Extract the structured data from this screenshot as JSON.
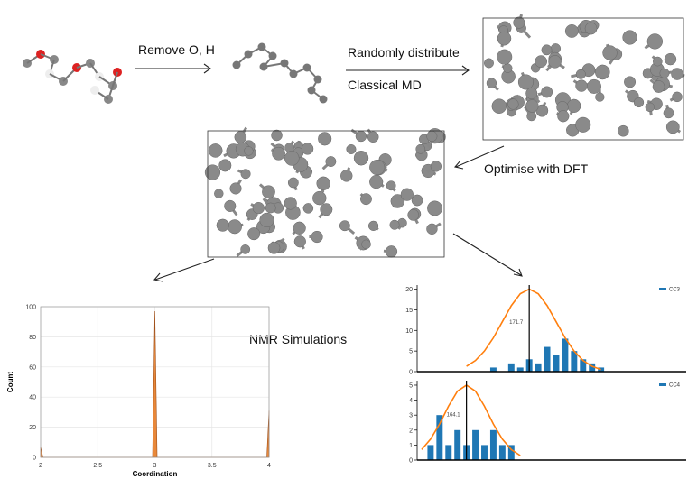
{
  "labels": {
    "remove": "Remove O, H",
    "distribute": "Randomly distribute",
    "md": "Classical MD",
    "dft": "Optimise with DFT",
    "nmr": "NMR Simulations"
  },
  "chart_data": [
    {
      "type": "area",
      "x": [
        2,
        2.02,
        2.98,
        3,
        3.02,
        3.98,
        4
      ],
      "values": [
        7,
        0,
        0,
        97,
        0,
        0,
        31
      ],
      "color": "#e8883a",
      "xlim": [
        2,
        4
      ],
      "ylim": [
        0,
        100
      ],
      "xticks": [
        2,
        2.5,
        3,
        3.5,
        4
      ],
      "yticks": [
        0,
        20,
        40,
        60,
        80,
        100
      ],
      "xlabel": "Coordination",
      "ylabel": "Count",
      "grid": true
    },
    {
      "type": "bar",
      "categories": [
        null,
        null,
        null,
        null,
        null,
        null,
        null,
        null,
        null,
        null,
        null,
        null,
        null,
        null,
        null,
        null,
        null,
        null,
        null,
        null,
        null,
        null,
        null,
        null,
        null,
        null,
        null,
        null,
        null,
        null
      ],
      "series": [
        {
          "name": "CC3",
          "color": "#1f77b4",
          "values": [
            0,
            0,
            0,
            0,
            0,
            0,
            0,
            0,
            1,
            0,
            2,
            1,
            3,
            2,
            6,
            4,
            8,
            5,
            3,
            2,
            1,
            0,
            0,
            0,
            0,
            0,
            0,
            0,
            0,
            0
          ]
        }
      ],
      "curve": {
        "color": "#ff7f0e",
        "values": [
          null,
          null,
          null,
          null,
          null,
          1.3,
          2.7,
          5.0,
          8.2,
          12.1,
          16.0,
          18.9,
          20,
          18.9,
          16.0,
          12.1,
          8.2,
          5.0,
          2.7,
          1.3,
          0.5,
          null,
          null,
          null,
          null,
          null,
          null,
          null,
          null,
          null
        ]
      },
      "marker_index": 12,
      "annotation": "171.7",
      "ylim": [
        0,
        21
      ],
      "yticks": [
        0,
        5,
        10,
        15,
        20
      ]
    },
    {
      "type": "bar",
      "categories": [
        null,
        null,
        null,
        null,
        null,
        null,
        null,
        null,
        null,
        null,
        null,
        null,
        null,
        null,
        null,
        null,
        null,
        null,
        null,
        null,
        null,
        null,
        null,
        null,
        null,
        null,
        null,
        null,
        null,
        null
      ],
      "series": [
        {
          "name": "CC4",
          "color": "#1f77b4",
          "values": [
            0,
            1,
            3,
            1,
            2,
            1,
            2,
            1,
            2,
            1,
            1,
            0,
            0,
            0,
            0,
            0,
            0,
            0,
            0,
            0,
            0,
            0,
            0,
            0,
            0,
            0,
            0,
            0,
            0,
            0
          ]
        }
      ],
      "curve": {
        "color": "#ff7f0e",
        "values": [
          0.7,
          1.4,
          2.4,
          3.6,
          4.6,
          5,
          4.6,
          3.6,
          2.4,
          1.4,
          0.7,
          0.3,
          null,
          null,
          null,
          null,
          null,
          null,
          null,
          null,
          null,
          null,
          null,
          null,
          null,
          null,
          null,
          null,
          null,
          null
        ]
      },
      "marker_index": 5,
      "annotation": "164.1",
      "ylim": [
        0,
        5.3
      ],
      "yticks": [
        0,
        1,
        2,
        3,
        4,
        5
      ]
    }
  ]
}
